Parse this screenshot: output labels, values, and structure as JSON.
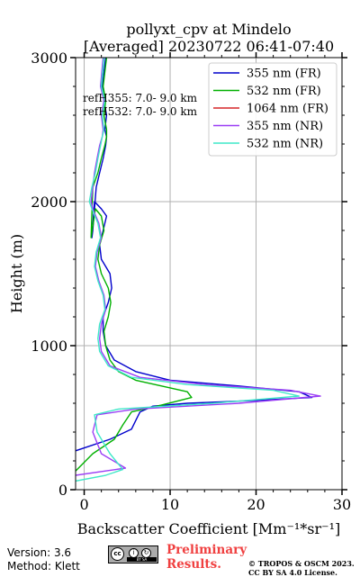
{
  "chart_data": {
    "type": "line",
    "title": [
      "pollyxt_cpv at Mindelo",
      "[Averaged] 20230722 06:41-07:40"
    ],
    "xlabel": "Backscatter Coefficient [Mm⁻¹*sr⁻¹]",
    "ylabel": "Height (m)",
    "xlim": [
      -1,
      30
    ],
    "ylim": [
      0,
      3000
    ],
    "xticks": [
      0,
      10,
      20,
      30
    ],
    "yticks": [
      0,
      1000,
      2000,
      3000
    ],
    "grid": true,
    "legend_position": "top-right",
    "annotations": [
      "refH355:  7.0- 9.0 km",
      "refH532:  7.0- 9.0 km"
    ],
    "series": [
      {
        "name": "355 nm (FR)",
        "color": "#0000cc",
        "x": [
          -1,
          3.0,
          5.5,
          6.0,
          6.5,
          8.0,
          12.0,
          20.0,
          26.5,
          25.0,
          18.0,
          10.0,
          6.0,
          3.5,
          2.5,
          2.2,
          2.2,
          2.8,
          3.2,
          3.0,
          2.0,
          1.8,
          2.2,
          2.6,
          2.0,
          1.2,
          0.9,
          1.0,
          1.4,
          1.8,
          2.2,
          2.5,
          2.6,
          2.4,
          2.6,
          2.3,
          2.1,
          2.5
        ],
        "y": [
          270,
          350,
          420,
          480,
          540,
          580,
          600,
          620,
          640,
          680,
          720,
          760,
          820,
          900,
          1000,
          1100,
          1200,
          1300,
          1400,
          1500,
          1600,
          1700,
          1800,
          1900,
          1950,
          2000,
          1750,
          1800,
          2100,
          2200,
          2300,
          2390,
          2450,
          2500,
          2600,
          2700,
          2800,
          3000
        ]
      },
      {
        "name": "532 nm (FR)",
        "color": "#00b000",
        "x": [
          -1,
          1.0,
          3.5,
          4.5,
          5.5,
          8.5,
          12.5,
          12.0,
          9.0,
          6.0,
          4.0,
          3.0,
          2.5,
          2.3,
          2.8,
          3.1,
          2.8,
          2.0,
          1.6,
          1.8,
          2.3,
          2.0,
          1.3,
          0.8,
          1.0,
          1.6,
          2.0,
          2.4,
          2.6,
          2.6,
          2.3,
          2.5,
          2.2,
          2.6
        ],
        "y": [
          130,
          250,
          350,
          450,
          540,
          580,
          640,
          680,
          720,
          760,
          820,
          900,
          1000,
          1100,
          1200,
          1300,
          1400,
          1500,
          1600,
          1700,
          1800,
          1900,
          1950,
          1750,
          2100,
          2200,
          2300,
          2390,
          2450,
          2500,
          2600,
          2700,
          2800,
          3000
        ]
      },
      {
        "name": "1064 nm (FR)",
        "color": "#d62728",
        "x": [],
        "y": []
      },
      {
        "name": "355 nm (NR)",
        "color": "#9b3ef5",
        "x": [
          -1,
          2.5,
          4.8,
          2.0,
          1.0,
          1.5,
          6.0,
          18.0,
          27.5,
          24.0,
          14.0,
          6.5,
          3.0,
          2.0,
          1.8,
          2.0,
          2.5,
          2.3,
          1.7,
          1.3,
          1.5,
          2.0,
          1.7,
          1.0,
          0.8,
          1.0,
          1.2,
          1.5,
          1.8,
          2.1,
          2.2,
          2.0,
          2.3,
          1.9,
          2.2
        ],
        "y": [
          100,
          130,
          150,
          250,
          400,
          520,
          560,
          600,
          650,
          690,
          730,
          780,
          860,
          960,
          1050,
          1150,
          1250,
          1350,
          1450,
          1550,
          1650,
          1750,
          1850,
          1950,
          2000,
          2100,
          2200,
          2300,
          2390,
          2450,
          2500,
          2600,
          2700,
          2800,
          3000
        ]
      },
      {
        "name": "532 nm (NR)",
        "color": "#3fe8c8",
        "x": [
          -1,
          2.5,
          4.5,
          3.0,
          1.5,
          1.2,
          4.0,
          15.0,
          25.0,
          22.0,
          12.0,
          5.5,
          2.8,
          1.8,
          1.6,
          1.8,
          2.4,
          2.2,
          1.6,
          1.2,
          1.4,
          1.9,
          1.6,
          0.9,
          0.6,
          0.9,
          1.3,
          1.6,
          1.9,
          2.1,
          2.3,
          2.1,
          2.4,
          2.0,
          2.3
        ],
        "y": [
          60,
          100,
          140,
          250,
          400,
          520,
          560,
          600,
          650,
          690,
          730,
          780,
          860,
          960,
          1050,
          1150,
          1250,
          1350,
          1450,
          1550,
          1650,
          1750,
          1850,
          1950,
          2000,
          2100,
          2200,
          2300,
          2390,
          2450,
          2500,
          2600,
          2700,
          2800,
          3000
        ]
      }
    ]
  },
  "footer": {
    "version": "Version: 3.6",
    "method": "Method: Klett",
    "preliminary": [
      "Preliminary",
      "Results."
    ],
    "copyright": [
      "© TROPOS & OSCM 2023.",
      "CC BY SA 4.0 License."
    ]
  }
}
